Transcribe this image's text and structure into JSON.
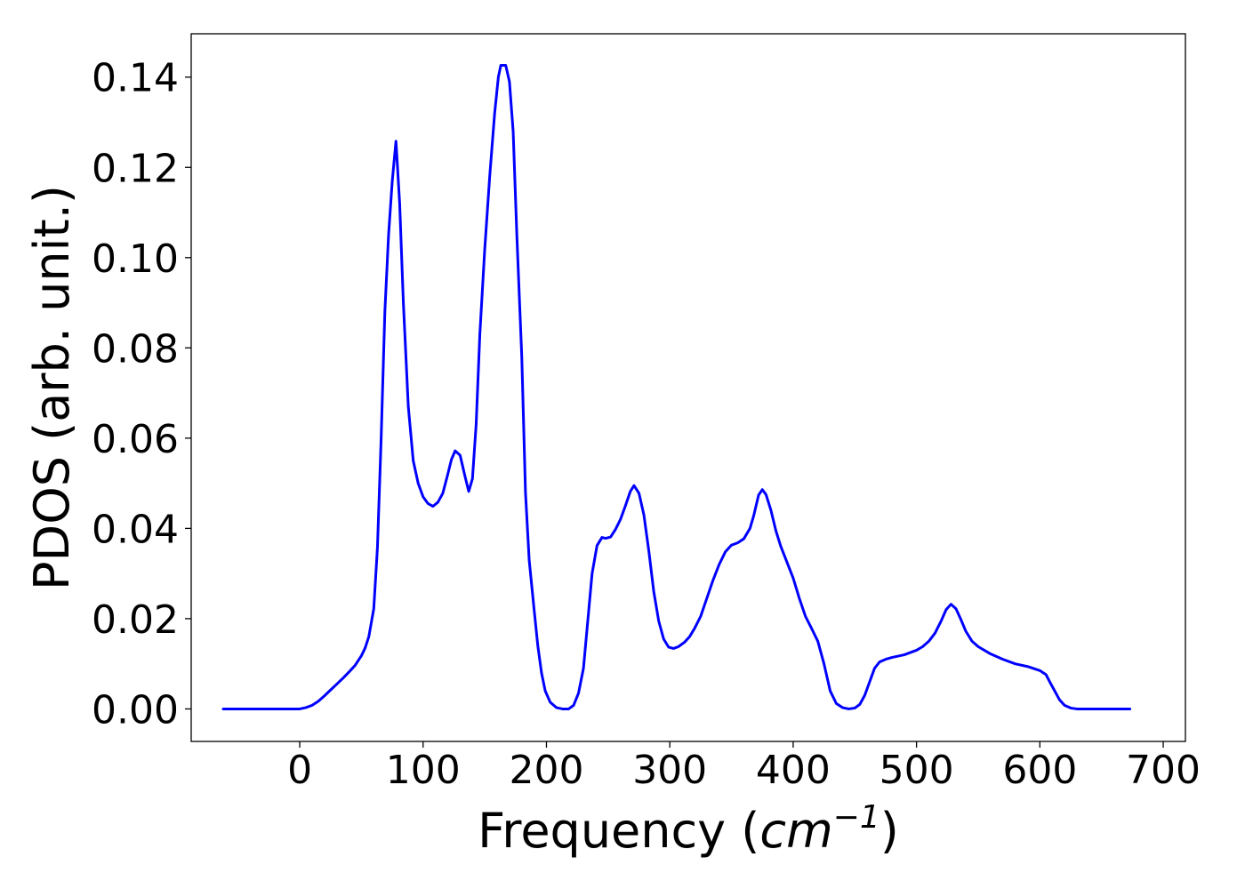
{
  "chart_data": {
    "type": "line",
    "xlabel": {
      "prefix": "Frequency (",
      "math": "cm",
      "superscript": "−1",
      "suffix": ")"
    },
    "ylabel": "PDOS (arb. unit.)",
    "xlim": [
      -88,
      718
    ],
    "ylim": [
      -0.0072,
      0.1496
    ],
    "xticks": [
      0,
      100,
      200,
      300,
      400,
      500,
      600,
      700
    ],
    "xtick_labels": [
      "0",
      "100",
      "200",
      "300",
      "400",
      "500",
      "600",
      "700"
    ],
    "yticks": [
      0.0,
      0.02,
      0.04,
      0.06,
      0.08,
      0.1,
      0.12,
      0.14
    ],
    "ytick_labels": [
      "0.00",
      "0.02",
      "0.04",
      "0.06",
      "0.08",
      "0.10",
      "0.12",
      "0.14"
    ],
    "grid": false,
    "series": [
      {
        "color": "#0000ff",
        "points": [
          [
            -62,
            0.0
          ],
          [
            -40,
            0.0
          ],
          [
            -20,
            0.0
          ],
          [
            0,
            0.0
          ],
          [
            5,
            0.0003
          ],
          [
            10,
            0.0008
          ],
          [
            15,
            0.0017
          ],
          [
            20,
            0.0029
          ],
          [
            25,
            0.0042
          ],
          [
            30,
            0.0055
          ],
          [
            35,
            0.0068
          ],
          [
            40,
            0.0082
          ],
          [
            45,
            0.0097
          ],
          [
            50,
            0.0118
          ],
          [
            53,
            0.0135
          ],
          [
            56,
            0.016
          ],
          [
            60,
            0.0222
          ],
          [
            63,
            0.0358
          ],
          [
            66,
            0.06
          ],
          [
            69,
            0.088
          ],
          [
            72,
            0.105
          ],
          [
            75,
            0.117
          ],
          [
            78,
            0.1258
          ],
          [
            81,
            0.112
          ],
          [
            84,
            0.09
          ],
          [
            88,
            0.067
          ],
          [
            92,
            0.055
          ],
          [
            96,
            0.05
          ],
          [
            100,
            0.047
          ],
          [
            104,
            0.0455
          ],
          [
            108,
            0.0449
          ],
          [
            112,
            0.0458
          ],
          [
            116,
            0.0478
          ],
          [
            120,
            0.052
          ],
          [
            123,
            0.0553
          ],
          [
            126,
            0.0572
          ],
          [
            130,
            0.0562
          ],
          [
            134,
            0.0515
          ],
          [
            137,
            0.0482
          ],
          [
            140,
            0.051
          ],
          [
            143,
            0.063
          ],
          [
            146,
            0.083
          ],
          [
            150,
            0.102
          ],
          [
            154,
            0.118
          ],
          [
            158,
            0.132
          ],
          [
            161,
            0.14
          ],
          [
            163,
            0.1426
          ],
          [
            167,
            0.1426
          ],
          [
            170,
            0.139
          ],
          [
            173,
            0.128
          ],
          [
            176,
            0.105
          ],
          [
            180,
            0.078
          ],
          [
            183,
            0.048
          ],
          [
            186,
            0.033
          ],
          [
            190,
            0.022
          ],
          [
            193,
            0.014
          ],
          [
            196,
            0.008
          ],
          [
            199,
            0.004
          ],
          [
            203,
            0.0015
          ],
          [
            208,
            0.0003
          ],
          [
            213,
            0.0
          ],
          [
            218,
            0.0
          ],
          [
            222,
            0.0008
          ],
          [
            226,
            0.0035
          ],
          [
            230,
            0.009
          ],
          [
            233,
            0.018
          ],
          [
            237,
            0.03
          ],
          [
            241,
            0.0362
          ],
          [
            245,
            0.038
          ],
          [
            248,
            0.0378
          ],
          [
            252,
            0.0381
          ],
          [
            256,
            0.0398
          ],
          [
            260,
            0.042
          ],
          [
            264,
            0.045
          ],
          [
            268,
            0.0482
          ],
          [
            271,
            0.0495
          ],
          [
            275,
            0.0478
          ],
          [
            279,
            0.043
          ],
          [
            283,
            0.035
          ],
          [
            287,
            0.026
          ],
          [
            291,
            0.0195
          ],
          [
            295,
            0.0155
          ],
          [
            299,
            0.0137
          ],
          [
            303,
            0.0134
          ],
          [
            307,
            0.0138
          ],
          [
            312,
            0.0148
          ],
          [
            316,
            0.016
          ],
          [
            320,
            0.0178
          ],
          [
            325,
            0.0205
          ],
          [
            330,
            0.0245
          ],
          [
            335,
            0.0285
          ],
          [
            340,
            0.032
          ],
          [
            345,
            0.0348
          ],
          [
            350,
            0.0363
          ],
          [
            355,
            0.0368
          ],
          [
            360,
            0.0377
          ],
          [
            365,
            0.04
          ],
          [
            368,
            0.0428
          ],
          [
            372,
            0.0474
          ],
          [
            375,
            0.0486
          ],
          [
            378,
            0.0475
          ],
          [
            382,
            0.044
          ],
          [
            386,
            0.0395
          ],
          [
            390,
            0.036
          ],
          [
            395,
            0.0325
          ],
          [
            400,
            0.029
          ],
          [
            405,
            0.0245
          ],
          [
            410,
            0.0205
          ],
          [
            415,
            0.0178
          ],
          [
            420,
            0.015
          ],
          [
            425,
            0.01
          ],
          [
            430,
            0.004
          ],
          [
            435,
            0.0012
          ],
          [
            440,
            0.0003
          ],
          [
            445,
            0.0
          ],
          [
            450,
            0.0002
          ],
          [
            454,
            0.001
          ],
          [
            458,
            0.003
          ],
          [
            462,
            0.006
          ],
          [
            466,
            0.009
          ],
          [
            470,
            0.0104
          ],
          [
            475,
            0.011
          ],
          [
            480,
            0.0114
          ],
          [
            490,
            0.012
          ],
          [
            500,
            0.013
          ],
          [
            505,
            0.0138
          ],
          [
            510,
            0.015
          ],
          [
            515,
            0.0168
          ],
          [
            520,
            0.0195
          ],
          [
            524,
            0.022
          ],
          [
            528,
            0.0232
          ],
          [
            532,
            0.0222
          ],
          [
            536,
            0.0198
          ],
          [
            540,
            0.0172
          ],
          [
            545,
            0.015
          ],
          [
            550,
            0.0138
          ],
          [
            560,
            0.0122
          ],
          [
            570,
            0.011
          ],
          [
            580,
            0.01
          ],
          [
            590,
            0.0094
          ],
          [
            600,
            0.0085
          ],
          [
            605,
            0.0076
          ],
          [
            608,
            0.006
          ],
          [
            612,
            0.004
          ],
          [
            616,
            0.002
          ],
          [
            620,
            0.0008
          ],
          [
            625,
            0.0002
          ],
          [
            630,
            0.0
          ],
          [
            650,
            0.0
          ],
          [
            673,
            0.0
          ]
        ]
      }
    ]
  }
}
